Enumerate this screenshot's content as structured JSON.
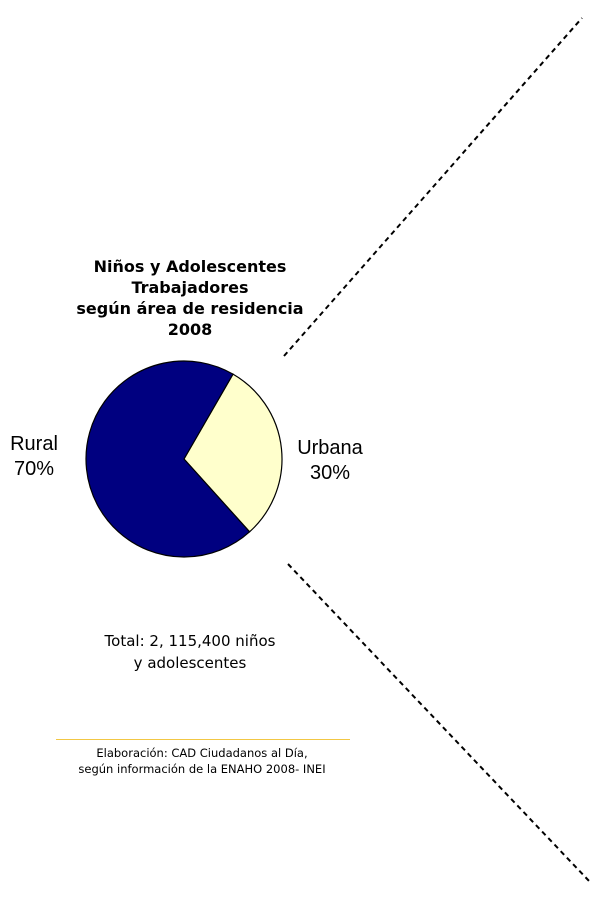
{
  "chart_data": {
    "type": "pie",
    "title": "Niños y Adolescentes Trabajadores",
    "subtitle": "según área de residencia",
    "year": "2008",
    "slices": [
      {
        "label": "Urbana",
        "value_label": "30%",
        "value": 30,
        "color": "#ffffcc"
      },
      {
        "label": "Rural",
        "value_label": "70%",
        "value": 70,
        "color": "#000080"
      }
    ]
  },
  "total": {
    "line1": "Total: 2, 115,400 niños",
    "line2": "y adolescentes"
  },
  "source": {
    "line1": "Elaboración: CAD Ciudadanos al Día,",
    "line2": "según información de la ENAHO 2008- INEI"
  },
  "colors": {
    "divider": "#f2c744",
    "pie_outline": "#000000"
  }
}
